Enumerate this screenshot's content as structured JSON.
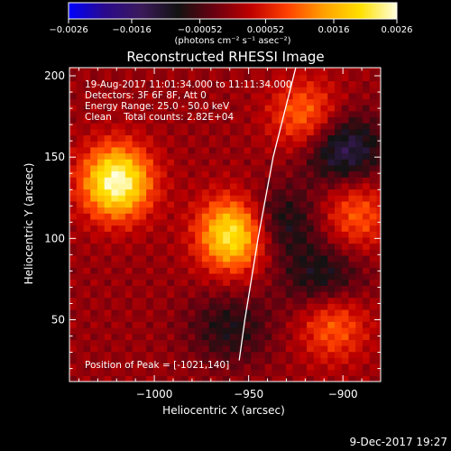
{
  "chart_data": {
    "type": "heatmap",
    "title": "Reconstructed RHESSI Image",
    "xlabel": "Heliocentric X (arcsec)",
    "ylabel": "Heliocentric Y (arcsec)",
    "xlim": [
      -1045,
      -880
    ],
    "ylim": [
      12,
      205
    ],
    "x_ticks": [
      -1000,
      -950,
      -900
    ],
    "x_tick_labels": [
      "−1000",
      "−950",
      "−900"
    ],
    "y_ticks": [
      50,
      100,
      150,
      200
    ],
    "y_tick_labels": [
      "50",
      "100",
      "150",
      "200"
    ],
    "colorbar": {
      "min": -0.0026,
      "max": 0.0026,
      "tick_values": [
        -0.0026,
        -0.0016,
        -0.00052,
        0.00052,
        0.0016,
        0.0026
      ],
      "tick_labels": [
        "−0.0026",
        "−0.0016",
        "−0.00052",
        "0.00052",
        "0.0016",
        "0.0026"
      ],
      "unit_label": "(photons cm⁻² s⁻¹ asec⁻²)",
      "colormap": [
        "#0000ff",
        "#2a0a8c",
        "#3b1a5a",
        "#121212",
        "#6a0010",
        "#c00000",
        "#ff4000",
        "#ffa000",
        "#ffe000",
        "#ffffe0"
      ]
    },
    "annotations": [
      "19-Aug-2017 11:01:34.000 to 11:11:34.000",
      "Detectors: 3F 6F 8F, Att 0",
      "Energy Range: 25.0 - 50.0 keV",
      "Clean    Total counts: 2.82E+04"
    ],
    "peak_label": "Position of Peak = [-1021,140]",
    "peak_position": [
      -1021,
      140
    ],
    "sources": [
      {
        "x": -1020,
        "y": 135,
        "peak": 0.0026
      },
      {
        "x": -958,
        "y": 103,
        "peak": 0.0024
      },
      {
        "x": -920,
        "y": 175,
        "peak": 0.0012
      },
      {
        "x": -893,
        "y": 115,
        "peak": 0.001
      },
      {
        "x": -905,
        "y": 48,
        "peak": 0.0011
      }
    ],
    "negative_regions": [
      {
        "x": -900,
        "y": 155,
        "value": -0.0014
      },
      {
        "x": -935,
        "y": 110,
        "value": -0.001
      },
      {
        "x": -910,
        "y": 75,
        "value": -0.001
      },
      {
        "x": -960,
        "y": 45,
        "value": -0.0008
      }
    ],
    "limb_curve": [
      [
        -925,
        205
      ],
      [
        -937,
        150
      ],
      [
        -945,
        100
      ],
      [
        -952,
        50
      ],
      [
        -955,
        25
      ]
    ]
  },
  "footer": {
    "date": "9-Dec-2017 19:27"
  }
}
